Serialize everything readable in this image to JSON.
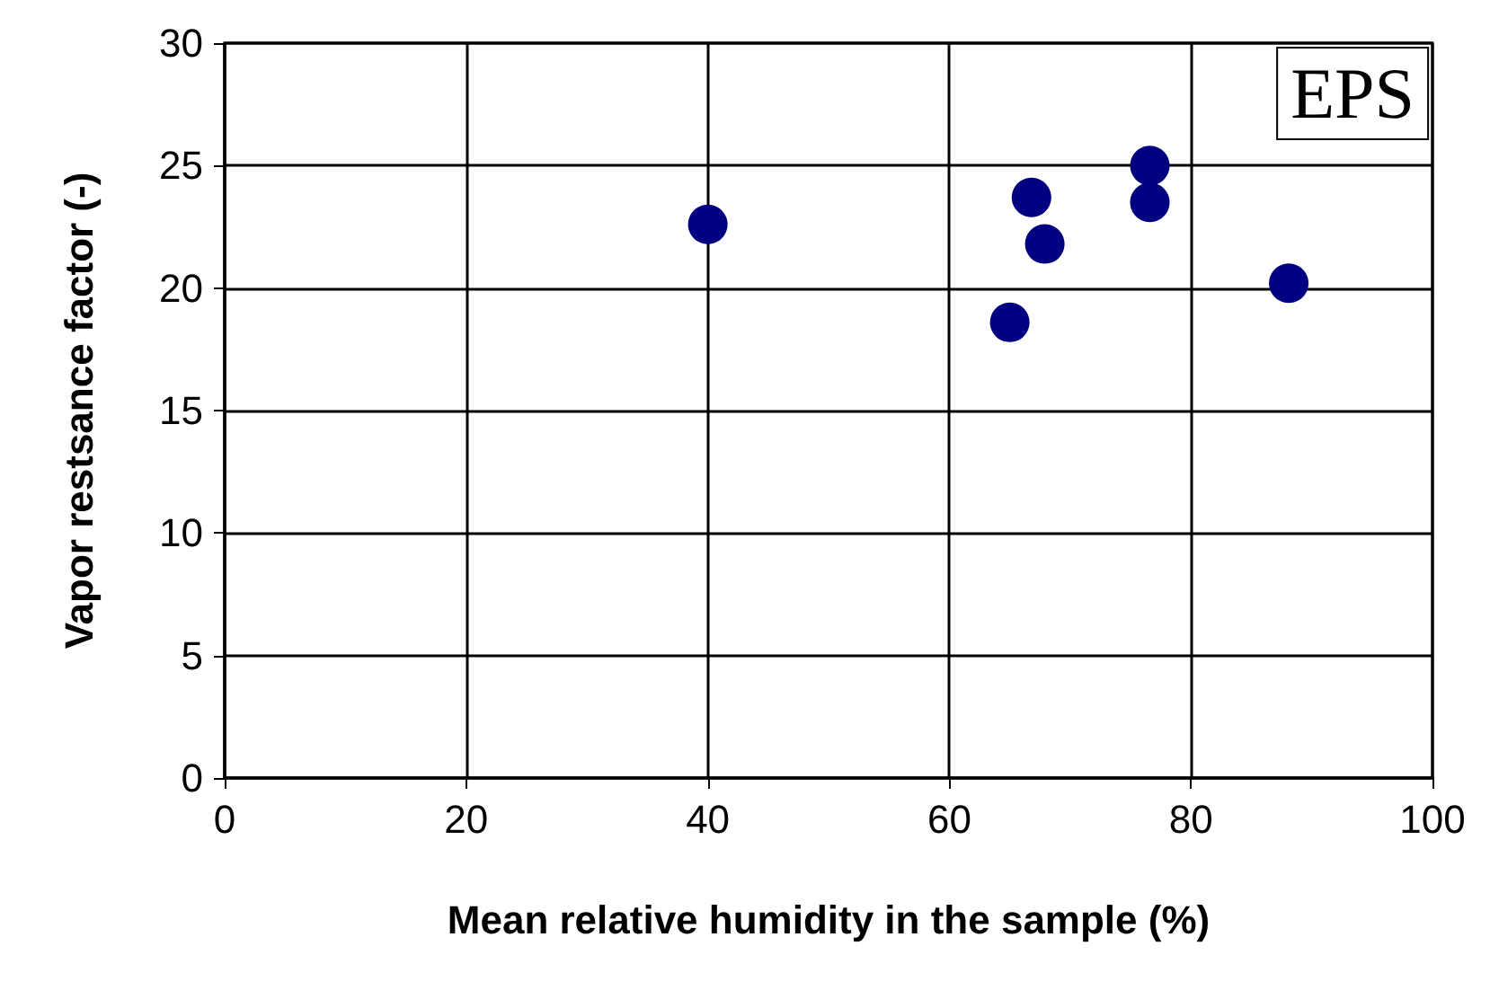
{
  "chart_data": {
    "type": "scatter",
    "xlabel": "Mean relative humidity in the sample (%)",
    "ylabel": "Vapor restsance factor (-)",
    "annotations": [
      "EPS"
    ],
    "x": [
      40,
      66.8,
      67.9,
      65,
      76.6,
      76.6,
      88.1
    ],
    "series": [
      {
        "color": "#000080",
        "values": [
          22.6,
          23.7,
          21.8,
          18.6,
          25,
          23.5,
          20.2
        ]
      }
    ],
    "xlim": [
      0,
      100
    ],
    "xticks": [
      0,
      20,
      40,
      60,
      80,
      100
    ],
    "ylim": [
      0,
      30
    ],
    "yticks": [
      0,
      5,
      10,
      15,
      20,
      25,
      30
    ],
    "grid": true,
    "marker": "circle"
  }
}
